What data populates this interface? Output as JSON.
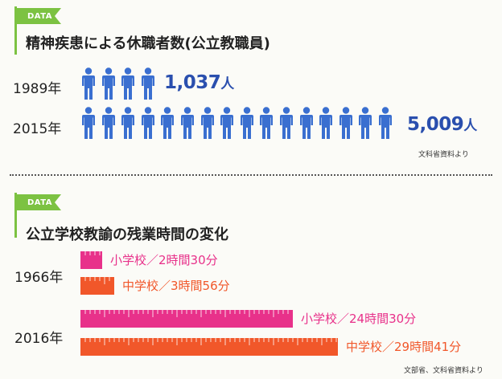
{
  "colors": {
    "figure": "#3a6fd0",
    "count_text": "#2a4fae",
    "flag": "#7cc242",
    "elementary": "#e8318a",
    "junior": "#f1572a"
  },
  "section1": {
    "badge": "DATA",
    "title": "精神疾患による休職者数(公立教職員)",
    "rows": [
      {
        "year": "1989年",
        "value": "1,037",
        "unit": "人",
        "icons": 4
      },
      {
        "year": "2015年",
        "value": "5,009",
        "unit": "人",
        "icons": 16
      }
    ],
    "source": "文科省資料より"
  },
  "section2": {
    "badge": "DATA",
    "title": "公立学校教諭の残業時間の変化",
    "source": "文部省、文科省資料より"
  },
  "chart_data": {
    "type": "bar",
    "title": "公立学校教諭の残業時間の変化",
    "categories": [
      "1966年",
      "2016年"
    ],
    "series": [
      {
        "name": "小学校",
        "values": [
          150,
          1470
        ],
        "labels": [
          "小学校／2時間30分",
          "小学校／24時間30分"
        ]
      },
      {
        "name": "中学校",
        "values": [
          236,
          1781
        ],
        "labels": [
          "中学校／3時間56分",
          "中学校／29時間41分"
        ]
      }
    ]
  }
}
